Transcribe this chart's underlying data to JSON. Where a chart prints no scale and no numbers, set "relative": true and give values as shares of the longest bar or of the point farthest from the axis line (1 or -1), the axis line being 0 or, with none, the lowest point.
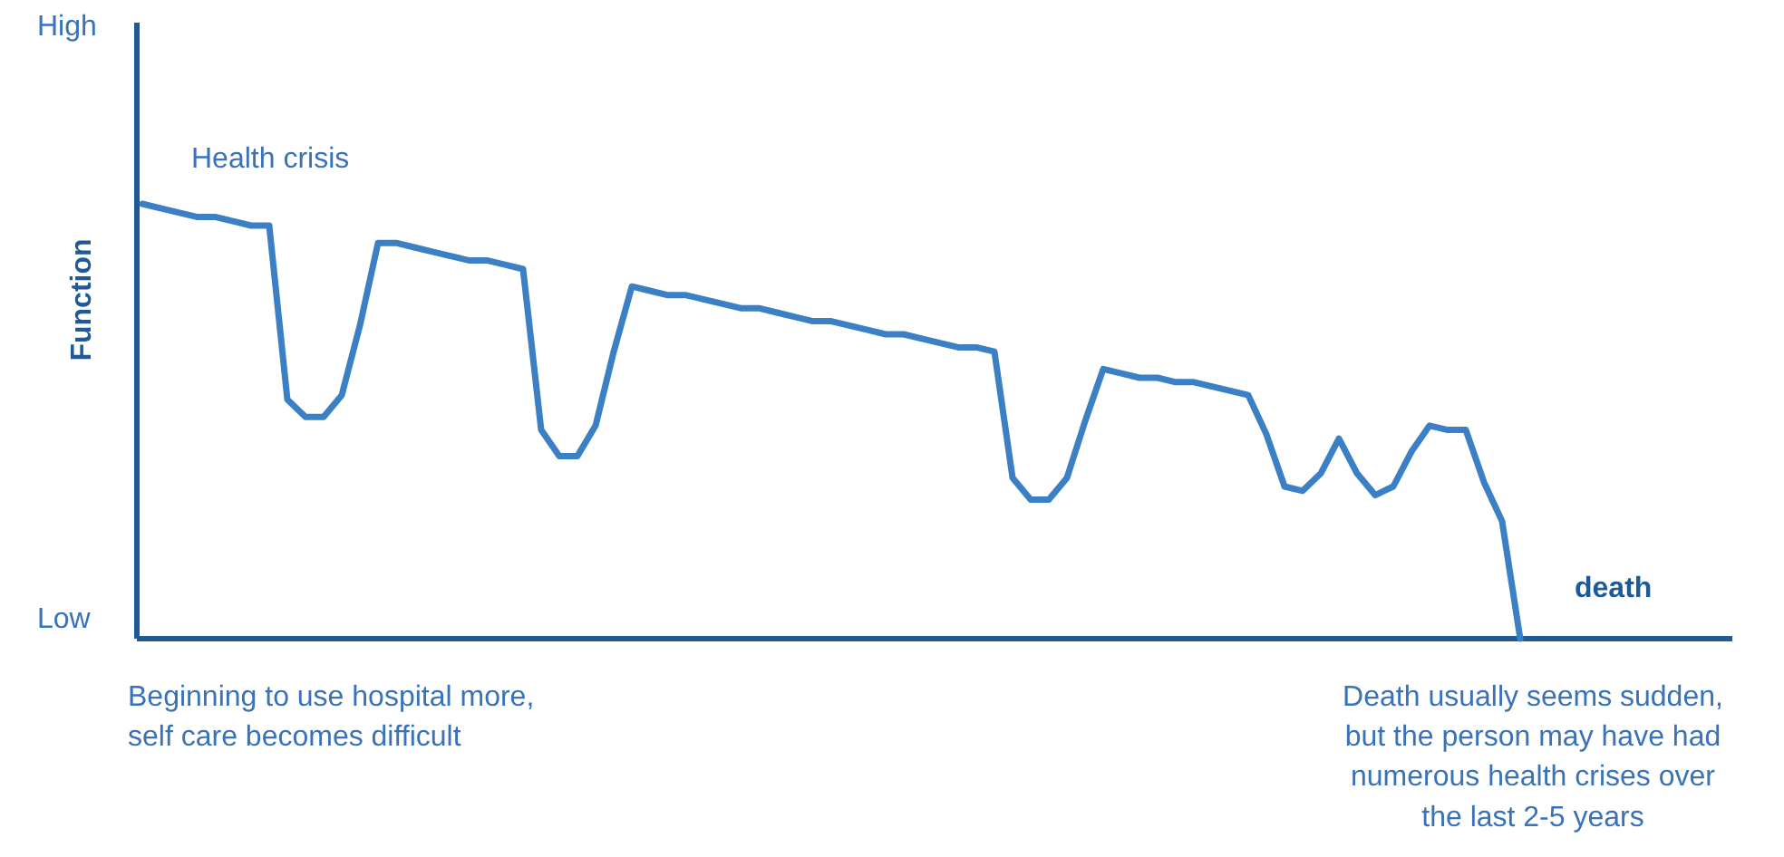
{
  "chart_data": {
    "type": "line",
    "relative": true,
    "ylabel": "Function",
    "color": "#3b7fc4",
    "categories": [
      null,
      null,
      null,
      null,
      null,
      null,
      null,
      null,
      null,
      null,
      null,
      null,
      null,
      null,
      null,
      null,
      null,
      null,
      null,
      null,
      null,
      null,
      null,
      null,
      null,
      null,
      null,
      null,
      null,
      null,
      null,
      null,
      null,
      null,
      null,
      null,
      null,
      null,
      null,
      null,
      null,
      null,
      null,
      null,
      null,
      null,
      null,
      null,
      null,
      null,
      null,
      null,
      null,
      null,
      null,
      null,
      null,
      null,
      null,
      null,
      null,
      null,
      null,
      null,
      null,
      null,
      null,
      null,
      null,
      null,
      null,
      null,
      null,
      null,
      null,
      null,
      null
    ],
    "values": [
      1.0,
      0.99,
      0.98,
      0.97,
      0.97,
      0.96,
      0.95,
      0.95,
      0.55,
      0.51,
      0.51,
      0.56,
      0.72,
      0.91,
      0.91,
      0.9,
      0.89,
      0.88,
      0.87,
      0.87,
      0.86,
      0.85,
      0.48,
      0.42,
      0.42,
      0.49,
      0.66,
      0.81,
      0.8,
      0.79,
      0.79,
      0.78,
      0.77,
      0.76,
      0.76,
      0.75,
      0.74,
      0.73,
      0.73,
      0.72,
      0.71,
      0.7,
      0.7,
      0.69,
      0.68,
      0.67,
      0.67,
      0.66,
      0.37,
      0.32,
      0.32,
      0.37,
      0.5,
      0.62,
      0.61,
      0.6,
      0.6,
      0.59,
      0.59,
      0.58,
      0.57,
      0.56,
      0.47,
      0.35,
      0.34,
      0.38,
      0.46,
      0.38,
      0.33,
      0.35,
      0.43,
      0.49,
      0.48,
      0.48,
      0.36,
      0.27,
      0.0
    ],
    "grid": false,
    "marker": "none",
    "line_style": "solid",
    "annotations": [
      "High",
      "Low",
      "Health crisis",
      "death",
      "Beginning to use hospital more,\nself care becomes difficult",
      "Death usually seems sudden,\nbut the person may have had\nnumerous health crises over\nthe last 2-5 years"
    ]
  }
}
